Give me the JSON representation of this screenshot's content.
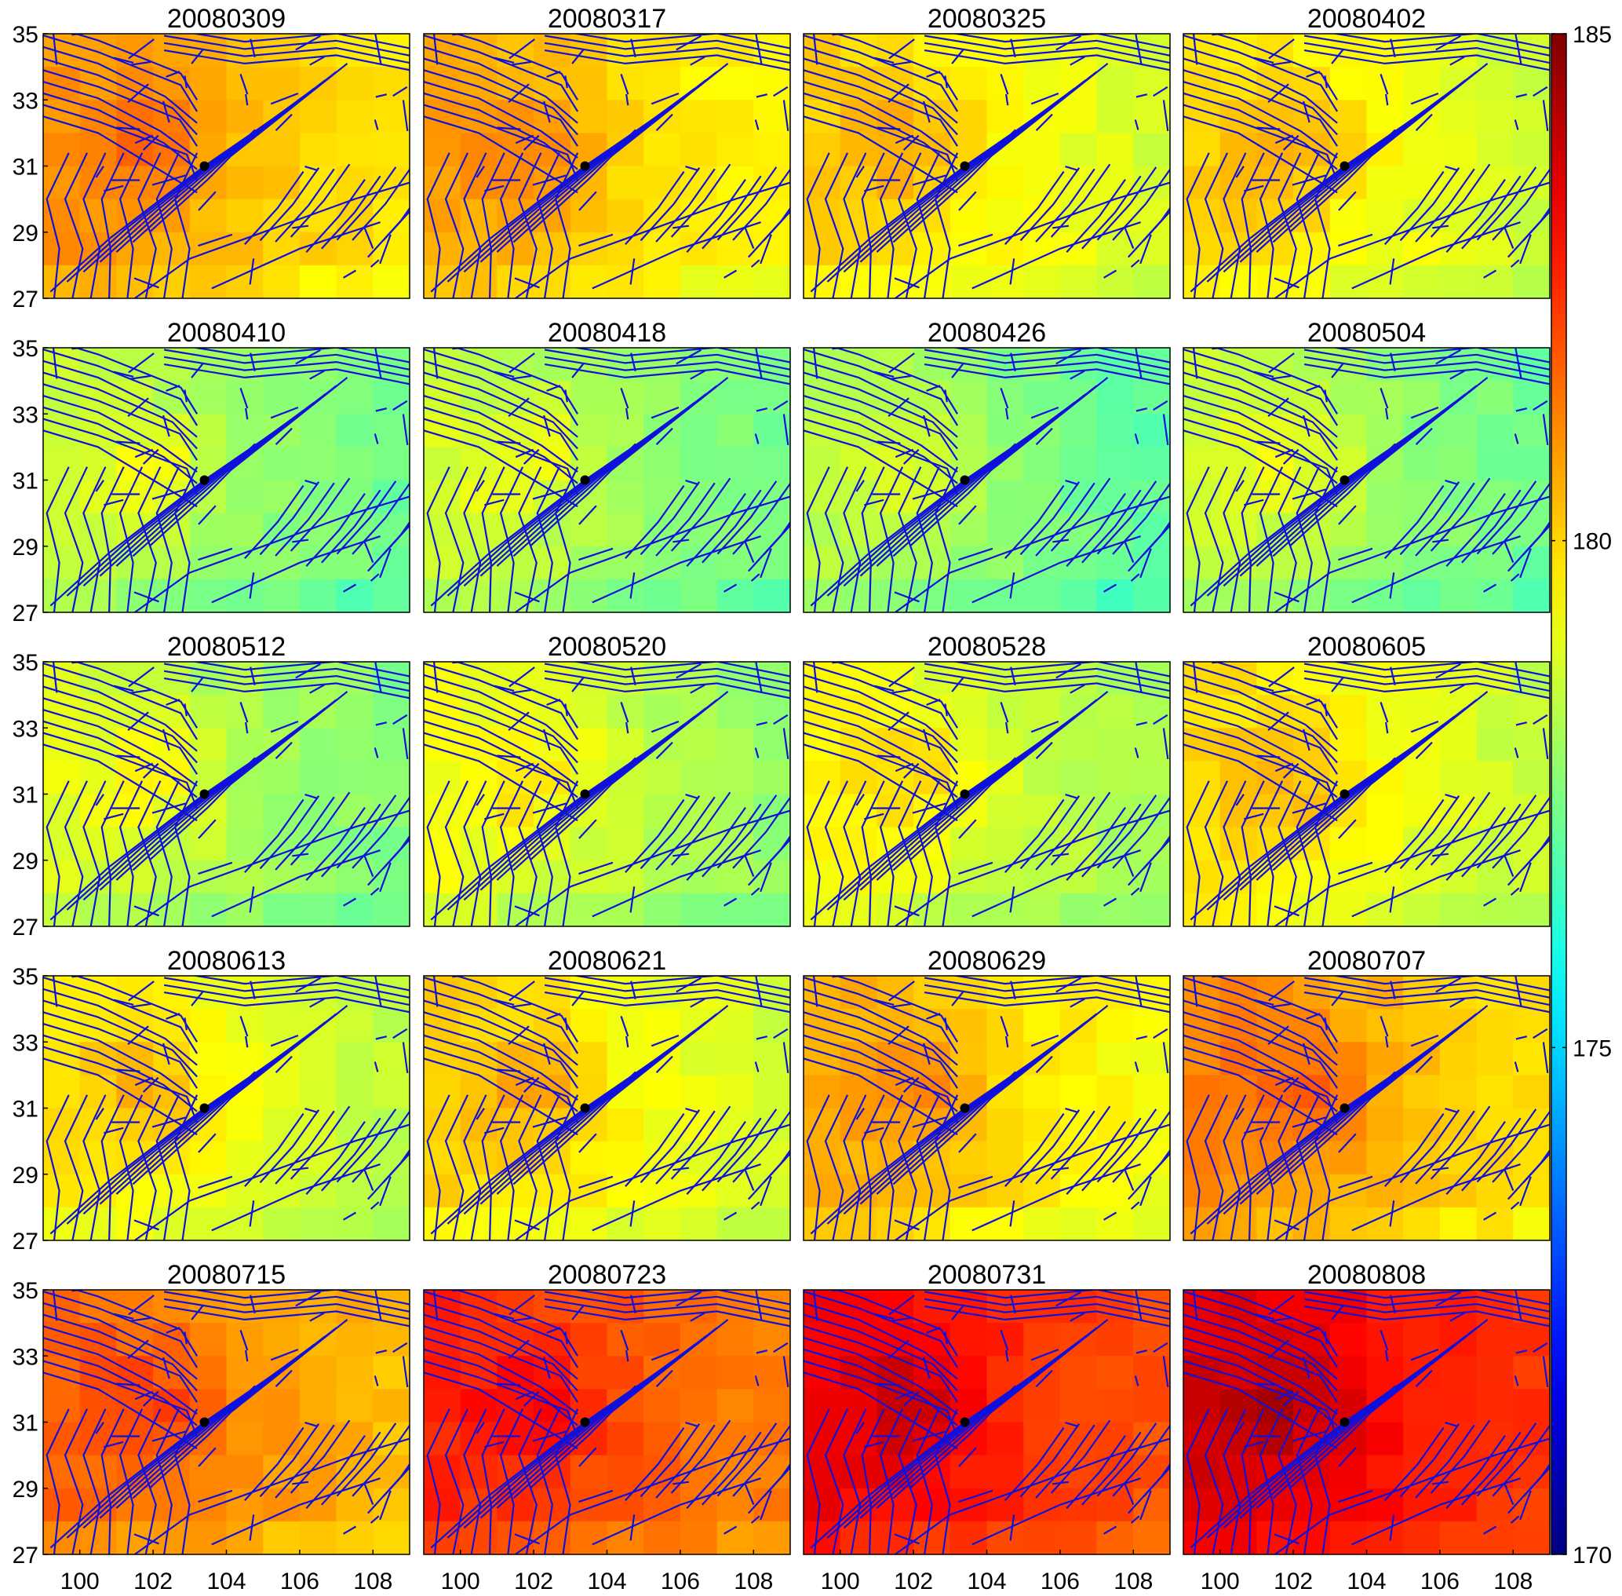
{
  "chart_data": {
    "type": "heatmap",
    "layout": {
      "rows": 5,
      "cols": 4
    },
    "panel_titles": [
      "20080309",
      "20080317",
      "20080325",
      "20080402",
      "20080410",
      "20080418",
      "20080426",
      "20080504",
      "20080512",
      "20080520",
      "20080528",
      "20080605",
      "20080613",
      "20080621",
      "20080629",
      "20080707",
      "20080715",
      "20080723",
      "20080731",
      "20080808"
    ],
    "xlim": [
      99,
      109
    ],
    "ylim": [
      27,
      35
    ],
    "xticks": [
      "100",
      "102",
      "104",
      "106",
      "108"
    ],
    "yticks": [
      "27",
      "29",
      "31",
      "33",
      "35"
    ],
    "grid": "off",
    "colorbar": {
      "range": [
        170,
        185
      ],
      "ticks": [
        "170",
        "175",
        "180",
        "185"
      ],
      "colormap": "jet",
      "position": "right"
    },
    "epicenter": {
      "lon": 103.4,
      "lat": 31.0
    },
    "fault_color": "#1010dd",
    "panel_mean_values": [
      180.3,
      180.0,
      179.4,
      179.3,
      177.9,
      178.0,
      177.7,
      177.9,
      178.2,
      178.5,
      178.7,
      179.2,
      179.1,
      179.4,
      179.9,
      180.5,
      181.0,
      181.9,
      182.6,
      183.0
    ]
  }
}
